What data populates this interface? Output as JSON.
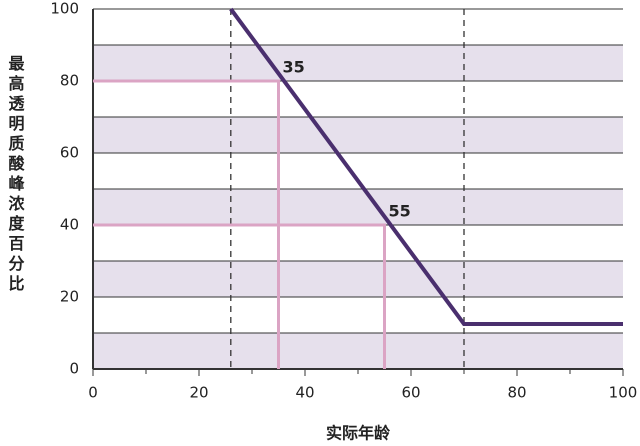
{
  "chart_data": {
    "type": "line",
    "x_label": "实际年龄",
    "y_label": "最高透明质酸峰浓度百分比",
    "x": [
      26,
      70,
      100
    ],
    "series": [
      {
        "color": "#4a2f6e",
        "values": [
          100,
          12.5,
          12.5
        ]
      }
    ],
    "xlim": [
      0,
      100
    ],
    "xticks": [
      0,
      20,
      40,
      60,
      80,
      100
    ],
    "minor_xticks": [
      10,
      30,
      50,
      70,
      90
    ],
    "ylim": [
      0,
      100
    ],
    "yticks": [
      0,
      20,
      40,
      60,
      80,
      100
    ],
    "minor_yticks": [
      10,
      30,
      50,
      70,
      90
    ],
    "band_color": "#e6e0ec",
    "dashed_vlines": [
      26,
      70
    ],
    "reference_points": [
      {
        "x": 35,
        "y": 80
      },
      {
        "x": 55,
        "y": 40
      }
    ],
    "reference_color": "#dba4c4"
  }
}
